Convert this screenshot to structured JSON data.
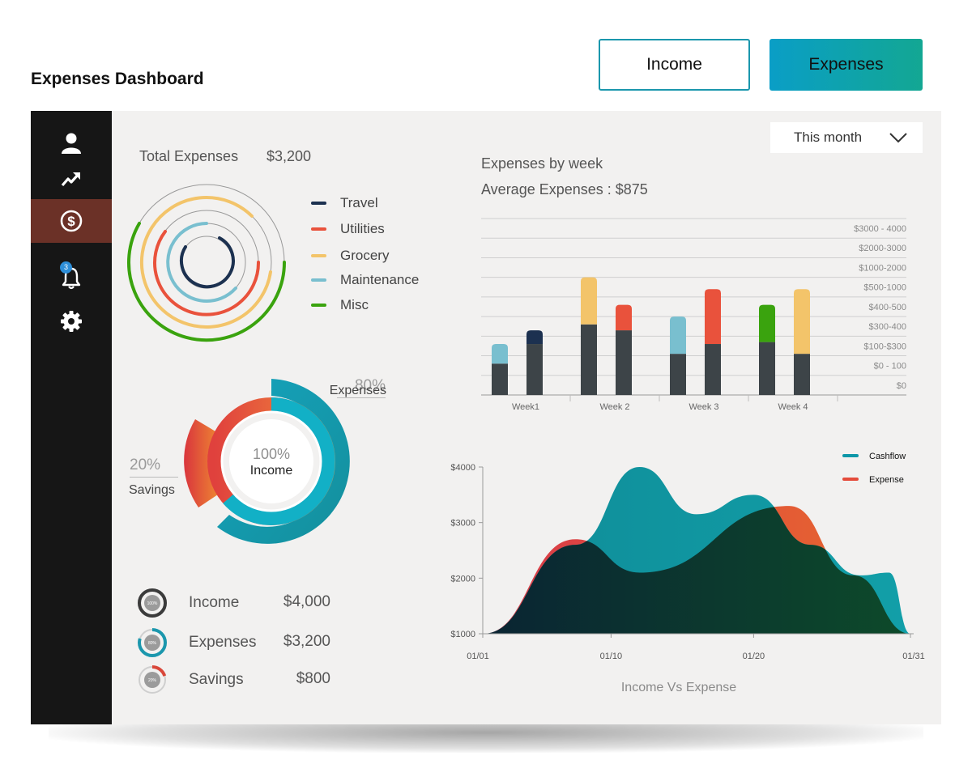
{
  "header": {
    "title": "Expenses Dashboard",
    "income_button": "Income",
    "expenses_button": "Expenses"
  },
  "sidebar": {
    "items": [
      {
        "name": "user",
        "icon": "user-icon"
      },
      {
        "name": "trends",
        "icon": "trend-up-icon"
      },
      {
        "name": "expenses",
        "icon": "dollar-icon",
        "active": true
      },
      {
        "name": "notifications",
        "icon": "bell-icon",
        "badge": "3"
      },
      {
        "name": "settings",
        "icon": "gear-icon"
      }
    ]
  },
  "filter": {
    "selected": "This month"
  },
  "total_expenses": {
    "label": "Total Expenses",
    "value": "$3,200"
  },
  "categories": [
    {
      "label": "Travel",
      "color": "#1c3150"
    },
    {
      "label": "Utilities",
      "color": "#e9523c"
    },
    {
      "label": "Grocery",
      "color": "#f3c46a"
    },
    {
      "label": "Maintenance",
      "color": "#79bfcf"
    },
    {
      "label": "Misc",
      "color": "#3aa30e"
    }
  ],
  "donut": {
    "center_percent": "100%",
    "center_label": "Income",
    "expenses_percent": "80%",
    "expenses_label": "Expenses",
    "savings_percent": "20%",
    "savings_label": "Savings",
    "expenses_fraction": 0.8,
    "savings_fraction": 0.2
  },
  "summary": [
    {
      "label": "Income",
      "value": "$4,000",
      "ring_text": "100%",
      "fraction": 1.0,
      "color": "#3b3b3b"
    },
    {
      "label": "Expenses",
      "value": "$3,200",
      "ring_text": "80%",
      "fraction": 0.8,
      "color": "#1b97ad"
    },
    {
      "label": "Savings",
      "value": "$800",
      "ring_text": "20%",
      "fraction": 0.2,
      "color": "#d9473a"
    }
  ],
  "weekly": {
    "title": "Expenses by week",
    "average_label": "Average Expenses : $875",
    "chart_data": {
      "type": "bar",
      "title": "Expenses by week",
      "categories": [
        "Week1",
        "Week 2",
        "Week 3",
        "Week 4"
      ],
      "y_labels": [
        "$3000 - 4000",
        "$2000-3000",
        "$1000-2000",
        "$500-1000",
        "$400-500",
        "$300-400",
        "$100-$300",
        "$0 - 100",
        "$0"
      ],
      "bars": [
        {
          "week": "Week1",
          "base": 1.6,
          "top": 2.6,
          "color": "#79bfcf"
        },
        {
          "week": "Week1",
          "base": 2.6,
          "top": 3.3,
          "color": "#1c3150"
        },
        {
          "week": "Week 2",
          "base": 3.6,
          "top": 6.0,
          "color": "#f3c46a"
        },
        {
          "week": "Week 2",
          "base": 3.3,
          "top": 4.6,
          "color": "#e9523c"
        },
        {
          "week": "Week 3",
          "base": 2.1,
          "top": 4.0,
          "color": "#79bfcf"
        },
        {
          "week": "Week 3",
          "base": 2.6,
          "top": 5.4,
          "color": "#e9523c"
        },
        {
          "week": "Week 4",
          "base": 2.7,
          "top": 4.6,
          "color": "#3aa30e"
        },
        {
          "week": "Week 4",
          "base": 2.1,
          "top": 5.4,
          "color": "#f3c46a"
        }
      ],
      "ylim": [
        0,
        9
      ]
    }
  },
  "flow": {
    "title": "Income Vs Expense",
    "chart_data": {
      "type": "area",
      "title": "Income Vs Expense",
      "x_labels": [
        "01/01",
        "01/10",
        "01/20",
        "01/31"
      ],
      "y_labels": [
        "$1000",
        "$2000",
        "$3000",
        "$4000"
      ],
      "ylim": [
        1000,
        4000
      ],
      "xlim": [
        1,
        31
      ],
      "series": [
        {
          "name": "Cashflow",
          "color": "#0d97a8",
          "x": [
            1,
            7.5,
            12,
            16,
            20,
            24,
            27.5,
            29.5,
            31
          ],
          "y": [
            1000,
            2600,
            4000,
            3150,
            3500,
            2600,
            2050,
            2100,
            1000
          ]
        },
        {
          "name": "Expense",
          "color": "#e44b3b",
          "x": [
            1,
            7.5,
            12,
            22.5,
            27,
            31
          ],
          "y": [
            1000,
            2700,
            2100,
            3300,
            2050,
            1000
          ]
        }
      ]
    }
  }
}
